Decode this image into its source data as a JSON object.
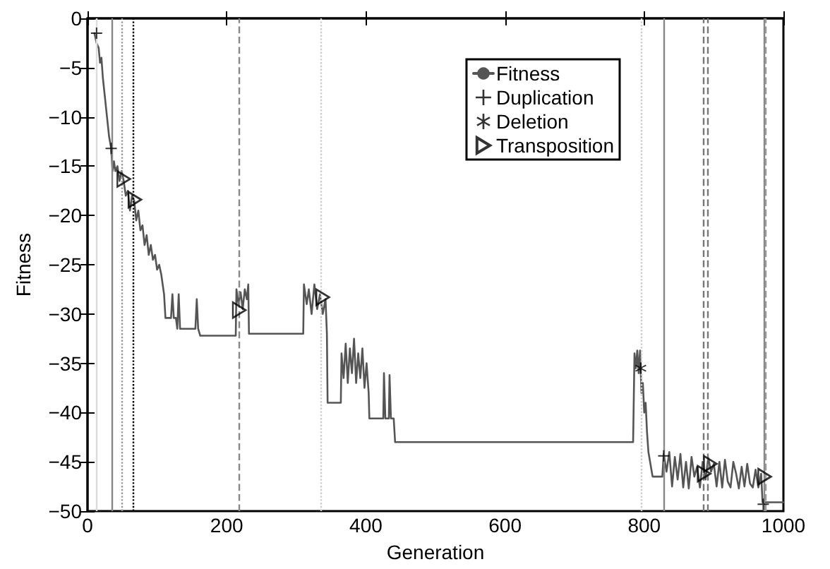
{
  "chart_data": {
    "type": "line",
    "xlabel": "Generation",
    "ylabel": "Fitness",
    "xlim": [
      0,
      1000
    ],
    "xticks": [
      0,
      200,
      400,
      600,
      800,
      1000
    ],
    "ylim": [
      -50,
      0
    ],
    "yticks": [
      {
        "value": -50,
        "label": "−50"
      },
      {
        "value": -45,
        "label": "−45"
      },
      {
        "value": -40,
        "label": "−40"
      },
      {
        "value": -35,
        "label": "−35"
      },
      {
        "value": -30,
        "label": "−30"
      },
      {
        "value": -25,
        "label": "−25"
      },
      {
        "value": -20,
        "label": "−20"
      },
      {
        "value": -15,
        "label": "−15"
      },
      {
        "value": -10,
        "label": "−10"
      },
      {
        "value": -5,
        "label": "−5"
      },
      0
    ],
    "grid": false,
    "legend": "top right",
    "series": [
      {
        "name": "Fitness",
        "color": "#555555",
        "marker": "none",
        "line_style": "solid",
        "x": [
          10,
          13,
          16,
          18,
          20,
          22,
          25,
          28,
          31,
          34,
          36,
          38,
          40,
          43,
          46,
          49,
          52,
          55,
          58,
          61,
          64,
          67,
          70,
          73,
          76,
          79,
          82,
          85,
          88,
          91,
          94,
          97,
          100,
          103,
          106,
          110,
          112,
          120,
          122,
          124,
          127,
          129,
          131,
          133,
          155,
          157,
          159,
          162,
          213,
          214,
          217,
          220,
          223,
          226,
          229,
          231,
          232,
          310,
          311,
          315,
          318,
          322,
          326,
          330,
          334,
          338,
          342,
          344,
          345,
          364,
          365,
          368,
          371,
          374,
          377,
          380,
          383,
          386,
          389,
          392,
          395,
          398,
          401,
          404,
          405,
          425,
          426,
          428,
          433,
          434,
          436,
          440,
          442,
          784,
          786,
          788,
          790,
          792,
          794,
          796,
          798,
          800,
          802,
          804,
          806,
          812,
          826,
          828,
          832,
          836,
          840,
          844,
          848,
          852,
          856,
          860,
          864,
          868,
          872,
          876,
          880,
          884,
          888,
          892,
          896,
          900,
          904,
          908,
          912,
          916,
          920,
          924,
          928,
          932,
          936,
          940,
          944,
          948,
          952,
          956,
          960,
          964,
          968,
          970,
          1000
        ],
        "values": [
          -1.5,
          -2.5,
          -3,
          -4.5,
          -4,
          -6,
          -8,
          -10,
          -12,
          -13.2,
          -15.5,
          -14.5,
          -15.5,
          -15,
          -16.5,
          -15.5,
          -16.5,
          -18,
          -17.5,
          -19.5,
          -18,
          -18.5,
          -20.5,
          -19.5,
          -21.5,
          -21,
          -23,
          -22,
          -24,
          -23,
          -24.5,
          -24,
          -25.5,
          -25,
          -26,
          -28,
          -30.4,
          -30.4,
          -28,
          -30.4,
          -30.4,
          -31.5,
          -28,
          -31.5,
          -31.5,
          -28.5,
          -31.5,
          -32.2,
          -32.2,
          -27.5,
          -29,
          -27.8,
          -29.5,
          -27.5,
          -28.5,
          -27,
          -32,
          -32,
          -27,
          -29,
          -27.5,
          -30,
          -27,
          -29.5,
          -28,
          -30,
          -28.5,
          -32,
          -39,
          -39,
          -34,
          -36.5,
          -33,
          -37,
          -33.5,
          -36,
          -32.5,
          -37,
          -34,
          -36.5,
          -33.5,
          -37.5,
          -35,
          -38,
          -40.6,
          -40.6,
          -36,
          -40.6,
          -40.6,
          -36.2,
          -40.6,
          -40.6,
          -43,
          -43,
          -34,
          -35.5,
          -33.7,
          -36,
          -33.7,
          -38,
          -37,
          -40,
          -39,
          -42,
          -44,
          -46.5,
          -46.5,
          -44.2,
          -46,
          -44,
          -47.5,
          -44.5,
          -46.8,
          -44.2,
          -47.6,
          -45,
          -47.7,
          -44.5,
          -46.5,
          -45.5,
          -47.6,
          -45,
          -46.8,
          -44.6,
          -46,
          -45.2,
          -47.5,
          -45,
          -47.6,
          -44.8,
          -47,
          -47.6,
          -45,
          -46.2,
          -47.7,
          -45.5,
          -47.5,
          -45.2,
          -47.2,
          -47.6,
          -45.8,
          -47.6,
          -46.2,
          -49.1,
          -49.1
        ]
      },
      {
        "name": "Duplication",
        "type": "scatter",
        "color": "#000000",
        "marker": "cross",
        "x": [
          13,
          34,
          828,
          971
        ],
        "values": [
          -1.5,
          -13.2,
          -44.4,
          -49.3
        ]
      },
      {
        "name": "Deletion",
        "type": "scatter",
        "color": "#000000",
        "marker": "star",
        "x": [
          795
        ],
        "values": [
          -35.5
        ]
      },
      {
        "name": "Transposition",
        "type": "scatter",
        "color": "#000000",
        "marker": "triangle",
        "x": [
          52,
          68,
          218,
          338,
          886,
          895,
          973
        ],
        "values": [
          -16.3,
          -18.4,
          -29.6,
          -28.3,
          -46.2,
          -45.2,
          -46.5
        ]
      }
    ],
    "ref_lines": [
      {
        "axis": "x",
        "value": 12,
        "color": "#dddddd",
        "line_style": "solid"
      },
      {
        "axis": "x",
        "value": 34,
        "color": "#888888",
        "line_style": "solid"
      },
      {
        "axis": "x",
        "value": 49,
        "color": "#999999",
        "line_style": "dotted"
      },
      {
        "axis": "x",
        "value": 66,
        "color": "#000000",
        "line_style": "dotted"
      },
      {
        "axis": "x",
        "value": 217,
        "color": "#888888",
        "line_style": "dashed"
      },
      {
        "axis": "x",
        "value": 336,
        "color": "#cccccc",
        "line_style": "dotted"
      },
      {
        "axis": "x",
        "value": 796,
        "color": "#cccccc",
        "line_style": "dotted"
      },
      {
        "axis": "x",
        "value": 828,
        "color": "#888888",
        "line_style": "solid"
      },
      {
        "axis": "x",
        "value": 884,
        "color": "#777777",
        "line_style": "dashed"
      },
      {
        "axis": "x",
        "value": 891,
        "color": "#777777",
        "line_style": "dashed"
      },
      {
        "axis": "x",
        "value": 972,
        "color": "#888888",
        "line_style": "solid"
      },
      {
        "axis": "x",
        "value": 974,
        "color": "#999999",
        "line_style": "dashed"
      }
    ]
  }
}
